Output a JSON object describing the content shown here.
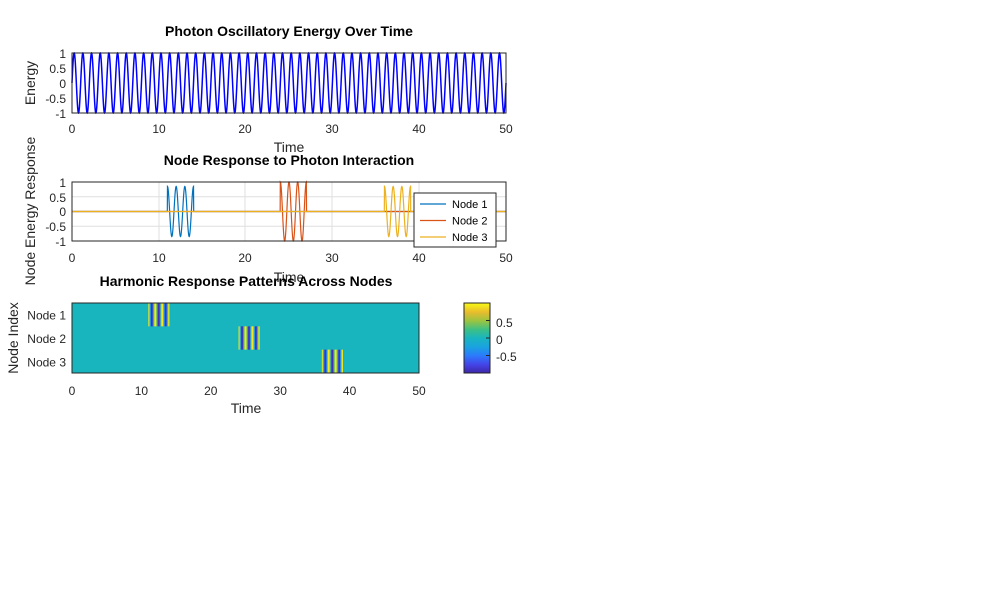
{
  "chart_data": [
    {
      "type": "line",
      "title": "Photon Oscillatory Energy Over Time",
      "xlabel": "Time",
      "ylabel": "Energy",
      "xlim": [
        0,
        50
      ],
      "ylim": [
        -1,
        1
      ],
      "xticks": [
        "0",
        "10",
        "20",
        "30",
        "40",
        "50"
      ],
      "yticks": [
        "1",
        "0.5",
        "0",
        "-0.5",
        "-1"
      ],
      "grid": false,
      "series": [
        {
          "function": "sin(2*pi*f*t)",
          "frequency": 1,
          "amplitude": 1,
          "x_range": [
            0,
            50
          ],
          "color": "#0000ff"
        }
      ]
    },
    {
      "type": "line",
      "title": "Node Response to Photon Interaction",
      "xlabel": "Time",
      "ylabel": "Node Energy Response",
      "xlim": [
        0,
        50
      ],
      "ylim": [
        -1,
        1
      ],
      "xticks": [
        "0",
        "10",
        "20",
        "30",
        "40",
        "50"
      ],
      "yticks": [
        "1",
        "0.5",
        "0",
        "-0.5",
        "-1"
      ],
      "grid": true,
      "legend_position": "right",
      "series": [
        {
          "name": "Node 1",
          "color": "#0072bd",
          "burst_start": 11,
          "burst_end": 14,
          "frequency": 1,
          "amplitude": 0.85
        },
        {
          "name": "Node 2",
          "color": "#d95319",
          "burst_start": 24,
          "burst_end": 27,
          "frequency": 1,
          "amplitude": 1
        },
        {
          "name": "Node 3",
          "color": "#edb120",
          "burst_start": 36,
          "burst_end": 39,
          "frequency": 1,
          "amplitude": 0.85
        }
      ]
    },
    {
      "type": "heatmap",
      "title": "Harmonic Response Patterns Across Nodes",
      "xlabel": "Time",
      "ylabel": "Node Index",
      "xlim": [
        0,
        50
      ],
      "xticks": [
        "0",
        "10",
        "20",
        "30",
        "40",
        "50"
      ],
      "rows": [
        "Node 1",
        "Node 2",
        "Node 3"
      ],
      "bursts": [
        {
          "row": 0,
          "start": 11,
          "end": 14
        },
        {
          "row": 1,
          "start": 24,
          "end": 27
        },
        {
          "row": 2,
          "start": 36,
          "end": 39
        }
      ],
      "colorbar": {
        "ticks": [
          "0.5",
          "0",
          "-0.5"
        ],
        "tick_values": [
          0.5,
          0,
          -0.5
        ],
        "range": [
          -1,
          1
        ],
        "colormap": "parula"
      }
    }
  ]
}
